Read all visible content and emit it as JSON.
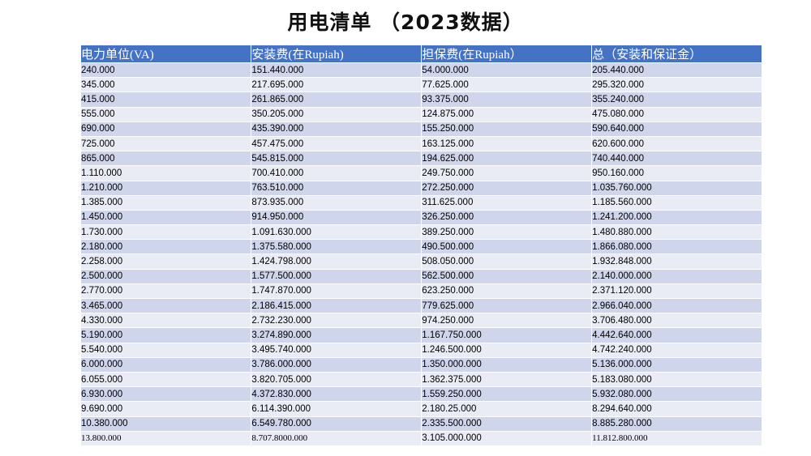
{
  "header": {
    "title": "用电清单 （2023数据）"
  },
  "table": {
    "columns": [
      "电力单位(VA)",
      "安装费(在Rupiah)",
      "担保费(在Rupiah）",
      "总（安装和保证金）"
    ],
    "rows": [
      [
        "240.000",
        "151.440.000",
        "54.000.000",
        "205.440.000"
      ],
      [
        "345.000",
        "217.695.000",
        "77.625.000",
        "295.320.000"
      ],
      [
        "415.000",
        "261.865.000",
        "93.375.000",
        "355.240.000"
      ],
      [
        "555.000",
        "350.205.000",
        "124.875.000",
        "475.080.000"
      ],
      [
        "690.000",
        "435.390.000",
        "155.250.000",
        "590.640.000"
      ],
      [
        "725.000",
        "457.475.000",
        "163.125.000",
        "620.600.000"
      ],
      [
        "865.000",
        "545.815.000",
        "194.625.000",
        "740.440.000"
      ],
      [
        "1.110.000",
        "700.410.000",
        "249.750.000",
        "950.160.000"
      ],
      [
        "1.210.000",
        "763.510.000",
        "272.250.000",
        "1.035.760.000"
      ],
      [
        "1.385.000",
        "873.935.000",
        "311.625.000",
        "1.185.560.000"
      ],
      [
        "1.450.000",
        "914.950.000",
        "326.250.000",
        "1.241.200.000"
      ],
      [
        "1.730.000",
        "1.091.630.000",
        "389.250.000",
        "1.480.880.000"
      ],
      [
        "2.180.000",
        "1.375.580.000",
        "490.500.000",
        "1.866.080.000"
      ],
      [
        "2.258.000",
        "1.424.798.000",
        "508.050.000",
        "1.932.848.000"
      ],
      [
        "2.500.000",
        "1.577.500.000",
        "562.500.000",
        "2.140.000.000"
      ],
      [
        "2.770.000",
        "1.747.870.000",
        "623.250.000",
        "2.371.120.000"
      ],
      [
        "3.465.000",
        "2.186.415.000",
        "779.625.000",
        "2.966.040.000"
      ],
      [
        "4.330.000",
        "2.732.230.000",
        "974.250.000",
        "3.706.480.000"
      ],
      [
        "5.190.000",
        "3.274.890.000",
        "1.167.750.000",
        "4.442.640.000"
      ],
      [
        "5.540.000",
        "3.495.740.000",
        "1.246.500.000",
        "4.742.240.000"
      ],
      [
        "6.000.000",
        "3.786.000.000",
        "1.350.000.000",
        "5.136.000.000"
      ],
      [
        "6.055.000",
        "3.820.705.000",
        "1.362.375.000",
        "5.183.080.000"
      ],
      [
        "6.930.000",
        "4.372.830.000",
        "1.559.250.000",
        "5.932.080.000"
      ],
      [
        "9.690.000",
        "6.114.390.000",
        "2.180.25.000",
        "8.294.640.000"
      ],
      [
        "10.380.000",
        "6.549.780.000",
        "2.335.500.000",
        "8.885.280.000"
      ],
      [
        "13.800.000",
        "8.707.8000.000",
        "3.105.000.000",
        "11.812.800.000"
      ]
    ]
  }
}
